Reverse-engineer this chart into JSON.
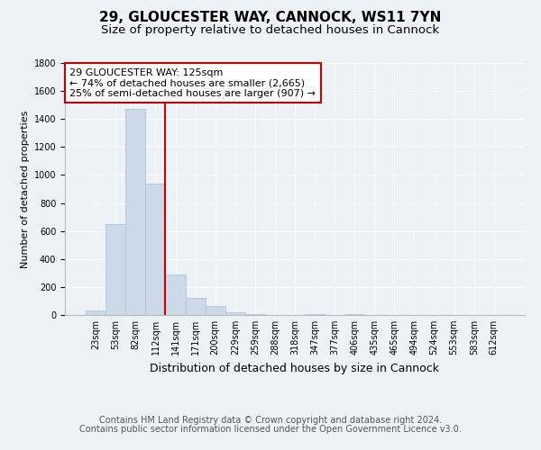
{
  "title1": "29, GLOUCESTER WAY, CANNOCK, WS11 7YN",
  "title2": "Size of property relative to detached houses in Cannock",
  "xlabel": "Distribution of detached houses by size in Cannock",
  "ylabel": "Number of detached properties",
  "bar_color": "#ccd9e8",
  "bar_edgecolor": "#aabdd4",
  "categories": [
    "23sqm",
    "53sqm",
    "82sqm",
    "112sqm",
    "141sqm",
    "171sqm",
    "200sqm",
    "229sqm",
    "259sqm",
    "288sqm",
    "318sqm",
    "347sqm",
    "377sqm",
    "406sqm",
    "435sqm",
    "465sqm",
    "494sqm",
    "524sqm",
    "553sqm",
    "583sqm",
    "612sqm"
  ],
  "values": [
    35,
    650,
    1470,
    940,
    290,
    125,
    65,
    20,
    5,
    2,
    1,
    5,
    0,
    5,
    0,
    0,
    0,
    0,
    0,
    0,
    0
  ],
  "vline_pos": 3.5,
  "vline_color": "#cc0000",
  "annotation_text": "29 GLOUCESTER WAY: 125sqm\n← 74% of detached houses are smaller (2,665)\n25% of semi-detached houses are larger (907) →",
  "annotation_box_edgecolor": "#cc0000",
  "annotation_box_facecolor": "#ffffff",
  "ylim": [
    0,
    1800
  ],
  "yticks": [
    0,
    200,
    400,
    600,
    800,
    1000,
    1200,
    1400,
    1600,
    1800
  ],
  "footer1": "Contains HM Land Registry data © Crown copyright and database right 2024.",
  "footer2": "Contains public sector information licensed under the Open Government Licence v3.0.",
  "bg_color": "#edf2f7",
  "grid_color": "#ffffff",
  "title1_fontsize": 11,
  "title2_fontsize": 9.5,
  "xlabel_fontsize": 9,
  "ylabel_fontsize": 8,
  "tick_fontsize": 7,
  "annot_fontsize": 8,
  "footer_fontsize": 7
}
